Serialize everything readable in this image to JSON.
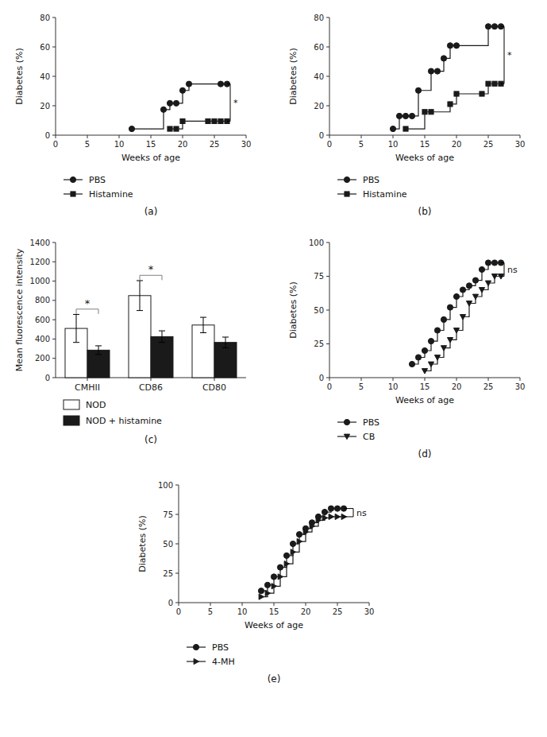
{
  "chart_data": [
    {
      "type": "line",
      "title": "(a)",
      "xlabel": "Weeks of age",
      "ylabel": "Diabetes (%)",
      "xlim": [
        0,
        30
      ],
      "ylim": [
        0,
        80
      ],
      "xticks": [
        0,
        5,
        10,
        15,
        20,
        25,
        30
      ],
      "yticks": [
        0,
        20,
        40,
        60,
        80
      ],
      "grid": false,
      "legend": "bottom",
      "series": [
        {
          "name": "PBS",
          "color": "#1a1a1a",
          "marker": "circle",
          "line_style": "step",
          "x": [
            12,
            17,
            18,
            19,
            20,
            21,
            26,
            27
          ],
          "values": [
            4.3,
            17.4,
            21.7,
            21.7,
            30.4,
            34.8,
            34.8,
            34.8
          ]
        },
        {
          "name": "Histamine",
          "color": "#1a1a1a",
          "marker": "square",
          "line_style": "step",
          "x": [
            18,
            19,
            20,
            24,
            25,
            26,
            27
          ],
          "values": [
            4.3,
            4.3,
            9.5,
            9.5,
            9.5,
            9.5,
            9.5
          ]
        }
      ],
      "annotations": [
        {
          "text": "*",
          "x": 27.5,
          "x_end": 27,
          "y1": 9.5,
          "y2": 34.8
        }
      ]
    },
    {
      "type": "line",
      "title": "(b)",
      "xlabel": "Weeks of age",
      "ylabel": "Diabetes (%)",
      "xlim": [
        0,
        30
      ],
      "ylim": [
        0,
        80
      ],
      "xticks": [
        0,
        5,
        10,
        15,
        20,
        25,
        30
      ],
      "yticks": [
        0,
        20,
        40,
        60,
        80
      ],
      "grid": false,
      "legend": "bottom",
      "series": [
        {
          "name": "PBS",
          "color": "#1a1a1a",
          "marker": "circle",
          "line_style": "step",
          "x": [
            10,
            11,
            12,
            13,
            14,
            16,
            17,
            18,
            19,
            20,
            25,
            26,
            27
          ],
          "values": [
            4.3,
            13.0,
            13.0,
            13.0,
            30.4,
            43.5,
            43.5,
            52.2,
            60.9,
            60.9,
            73.9,
            73.9,
            73.9
          ]
        },
        {
          "name": "Histamine",
          "color": "#1a1a1a",
          "marker": "square",
          "line_style": "step",
          "x": [
            12,
            15,
            16,
            19,
            20,
            24,
            25,
            26,
            27
          ],
          "values": [
            4.3,
            15.8,
            15.8,
            21.1,
            28.1,
            28.1,
            35.0,
            35.0,
            35.0
          ]
        }
      ],
      "annotations": [
        {
          "text": "*",
          "x": 27.5,
          "x_end": 27,
          "y1": 35.0,
          "y2": 73.9
        }
      ]
    },
    {
      "type": "bar",
      "title": "(c)",
      "ylabel": "Mean fluorescence intensity",
      "categories": [
        "CMHII",
        "CD86",
        "CD80"
      ],
      "ylim": [
        0,
        1400
      ],
      "yticks": [
        0,
        200,
        400,
        600,
        800,
        1000,
        1200,
        1400
      ],
      "grid": false,
      "legend": "bottom",
      "series": [
        {
          "name": "NOD",
          "color": "#ffffff",
          "values": [
            510,
            850,
            545
          ],
          "errors": [
            145,
            155,
            80
          ]
        },
        {
          "name": "NOD + histamine",
          "color": "#1a1a1a",
          "values": [
            285,
            425,
            365
          ],
          "errors": [
            45,
            60,
            55
          ]
        }
      ],
      "annotations": [
        {
          "text": "*",
          "category": "CMHII",
          "y": 660,
          "y_top": 710
        },
        {
          "text": "*",
          "category": "CD86",
          "y": 1010,
          "y_top": 1060
        }
      ]
    },
    {
      "type": "line",
      "title": "(d)",
      "xlabel": "Weeks of age",
      "ylabel": "Diabetes (%)",
      "xlim": [
        0,
        30
      ],
      "ylim": [
        0,
        100
      ],
      "xticks": [
        0,
        5,
        10,
        15,
        20,
        25,
        30
      ],
      "yticks": [
        0,
        25,
        50,
        75,
        100
      ],
      "grid": false,
      "legend": "bottom",
      "series": [
        {
          "name": "PBS",
          "color": "#1a1a1a",
          "marker": "circle",
          "line_style": "step",
          "x": [
            13,
            14,
            15,
            16,
            17,
            18,
            19,
            20,
            21,
            22,
            23,
            24,
            25,
            26,
            27
          ],
          "values": [
            10.0,
            15.0,
            20.0,
            27.0,
            35.0,
            43.0,
            52.0,
            60.0,
            65.0,
            68.0,
            72.0,
            80.0,
            85.0,
            85.0,
            85.0
          ]
        },
        {
          "name": "CB",
          "color": "#1a1a1a",
          "marker": "triangle-down",
          "line_style": "step",
          "x": [
            15,
            16,
            17,
            18,
            19,
            20,
            21,
            22,
            23,
            24,
            25,
            26,
            27
          ],
          "values": [
            5.0,
            10.0,
            15.0,
            22.0,
            28.0,
            35.0,
            45.0,
            55.0,
            60.0,
            65.0,
            70.0,
            75.0,
            75.0
          ]
        }
      ],
      "annotations": [
        {
          "text": "ns",
          "x": 27.5,
          "x_end": 27,
          "y1": 75.0,
          "y2": 85.0
        }
      ]
    },
    {
      "type": "line",
      "title": "(e)",
      "xlabel": "Weeks of age",
      "ylabel": "Diabetes (%)",
      "xlim": [
        0,
        30
      ],
      "ylim": [
        0,
        100
      ],
      "xticks": [
        0,
        5,
        10,
        15,
        20,
        25,
        30
      ],
      "yticks": [
        0,
        25,
        50,
        75,
        100
      ],
      "grid": false,
      "legend": "bottom",
      "series": [
        {
          "name": "PBS",
          "color": "#1a1a1a",
          "marker": "circle",
          "line_style": "step",
          "x": [
            13,
            14,
            15,
            16,
            17,
            18,
            19,
            20,
            21,
            22,
            23,
            24,
            25,
            26
          ],
          "values": [
            10.0,
            15.0,
            22.0,
            30.0,
            40.0,
            50.0,
            58.0,
            63.0,
            68.0,
            73.0,
            77.0,
            80.0,
            80.0,
            80.0
          ]
        },
        {
          "name": "4-MH",
          "color": "#1a1a1a",
          "marker": "triangle-right",
          "line_style": "step",
          "x": [
            13,
            14,
            15,
            16,
            17,
            18,
            19,
            20,
            21,
            22,
            23,
            24,
            25,
            26
          ],
          "values": [
            5.0,
            8.0,
            14.0,
            22.0,
            33.0,
            43.0,
            52.0,
            60.0,
            65.0,
            70.0,
            72.0,
            73.0,
            73.0,
            73.0
          ]
        }
      ],
      "annotations": [
        {
          "text": "ns",
          "x": 27.5,
          "x_end": 26,
          "y1": 73.0,
          "y2": 80.0
        }
      ]
    }
  ]
}
